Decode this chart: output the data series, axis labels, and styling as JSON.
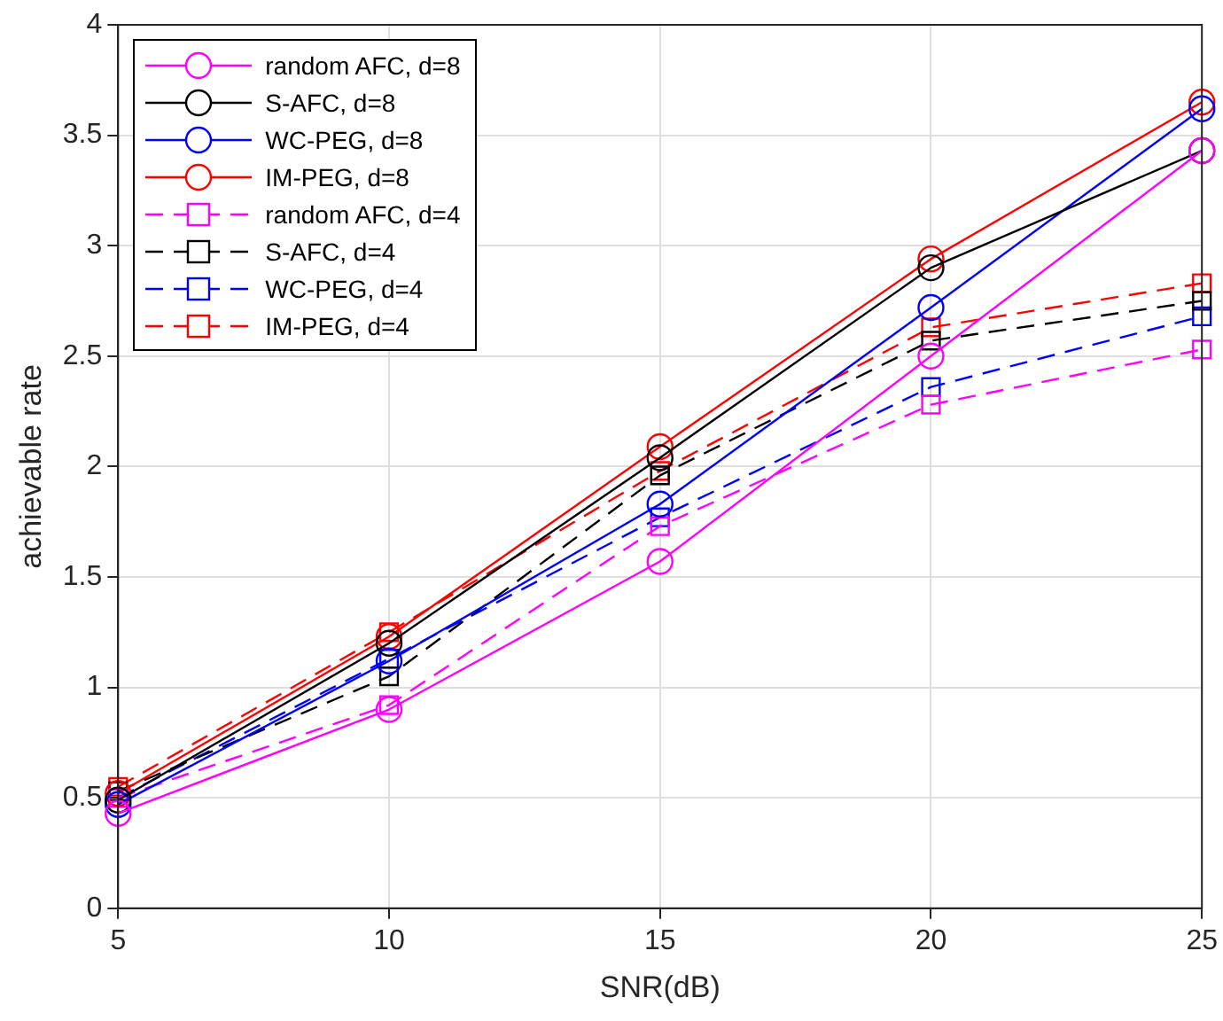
{
  "chart_data": {
    "type": "line",
    "xlabel": "SNR(dB)",
    "ylabel": "achievable rate",
    "x": [
      5,
      10,
      15,
      20,
      25
    ],
    "xlim": [
      5,
      25
    ],
    "xticks": [
      5,
      10,
      15,
      20,
      25
    ],
    "ylim": [
      0,
      4
    ],
    "yticks": [
      0,
      0.5,
      1,
      1.5,
      2,
      2.5,
      3,
      3.5,
      4
    ],
    "grid": true,
    "legend": "top left",
    "series": [
      {
        "name": "random AFC, d=8",
        "color": "#ff00ff",
        "marker": "circle",
        "line_style": "solid",
        "values": [
          0.43,
          0.9,
          1.57,
          2.5,
          3.43
        ]
      },
      {
        "name": "S-AFC, d=8",
        "color": "#000000",
        "marker": "circle",
        "line_style": "solid",
        "values": [
          0.49,
          1.2,
          2.04,
          2.9,
          3.43
        ]
      },
      {
        "name": "WC-PEG, d=8",
        "color": "#0000ff",
        "marker": "circle",
        "line_style": "solid",
        "values": [
          0.47,
          1.12,
          1.83,
          2.72,
          3.62
        ]
      },
      {
        "name": "IM-PEG, d=8",
        "color": "#ff0000",
        "marker": "circle",
        "line_style": "solid",
        "values": [
          0.52,
          1.23,
          2.09,
          2.94,
          3.65
        ]
      },
      {
        "name": "random AFC, d=4",
        "color": "#ff00ff",
        "marker": "square",
        "line_style": "dashed",
        "values": [
          0.5,
          0.92,
          1.73,
          2.28,
          2.53
        ]
      },
      {
        "name": "S-AFC, d=4",
        "color": "#000000",
        "marker": "square",
        "line_style": "dashed",
        "values": [
          0.53,
          1.05,
          1.96,
          2.57,
          2.75
        ]
      },
      {
        "name": "WC-PEG, d=4",
        "color": "#0000ff",
        "marker": "square",
        "line_style": "dashed",
        "values": [
          0.5,
          1.13,
          1.77,
          2.36,
          2.68
        ]
      },
      {
        "name": "IM-PEG, d=4",
        "color": "#ff0000",
        "marker": "square",
        "line_style": "dashed",
        "values": [
          0.55,
          1.25,
          1.98,
          2.63,
          2.83
        ]
      }
    ]
  }
}
